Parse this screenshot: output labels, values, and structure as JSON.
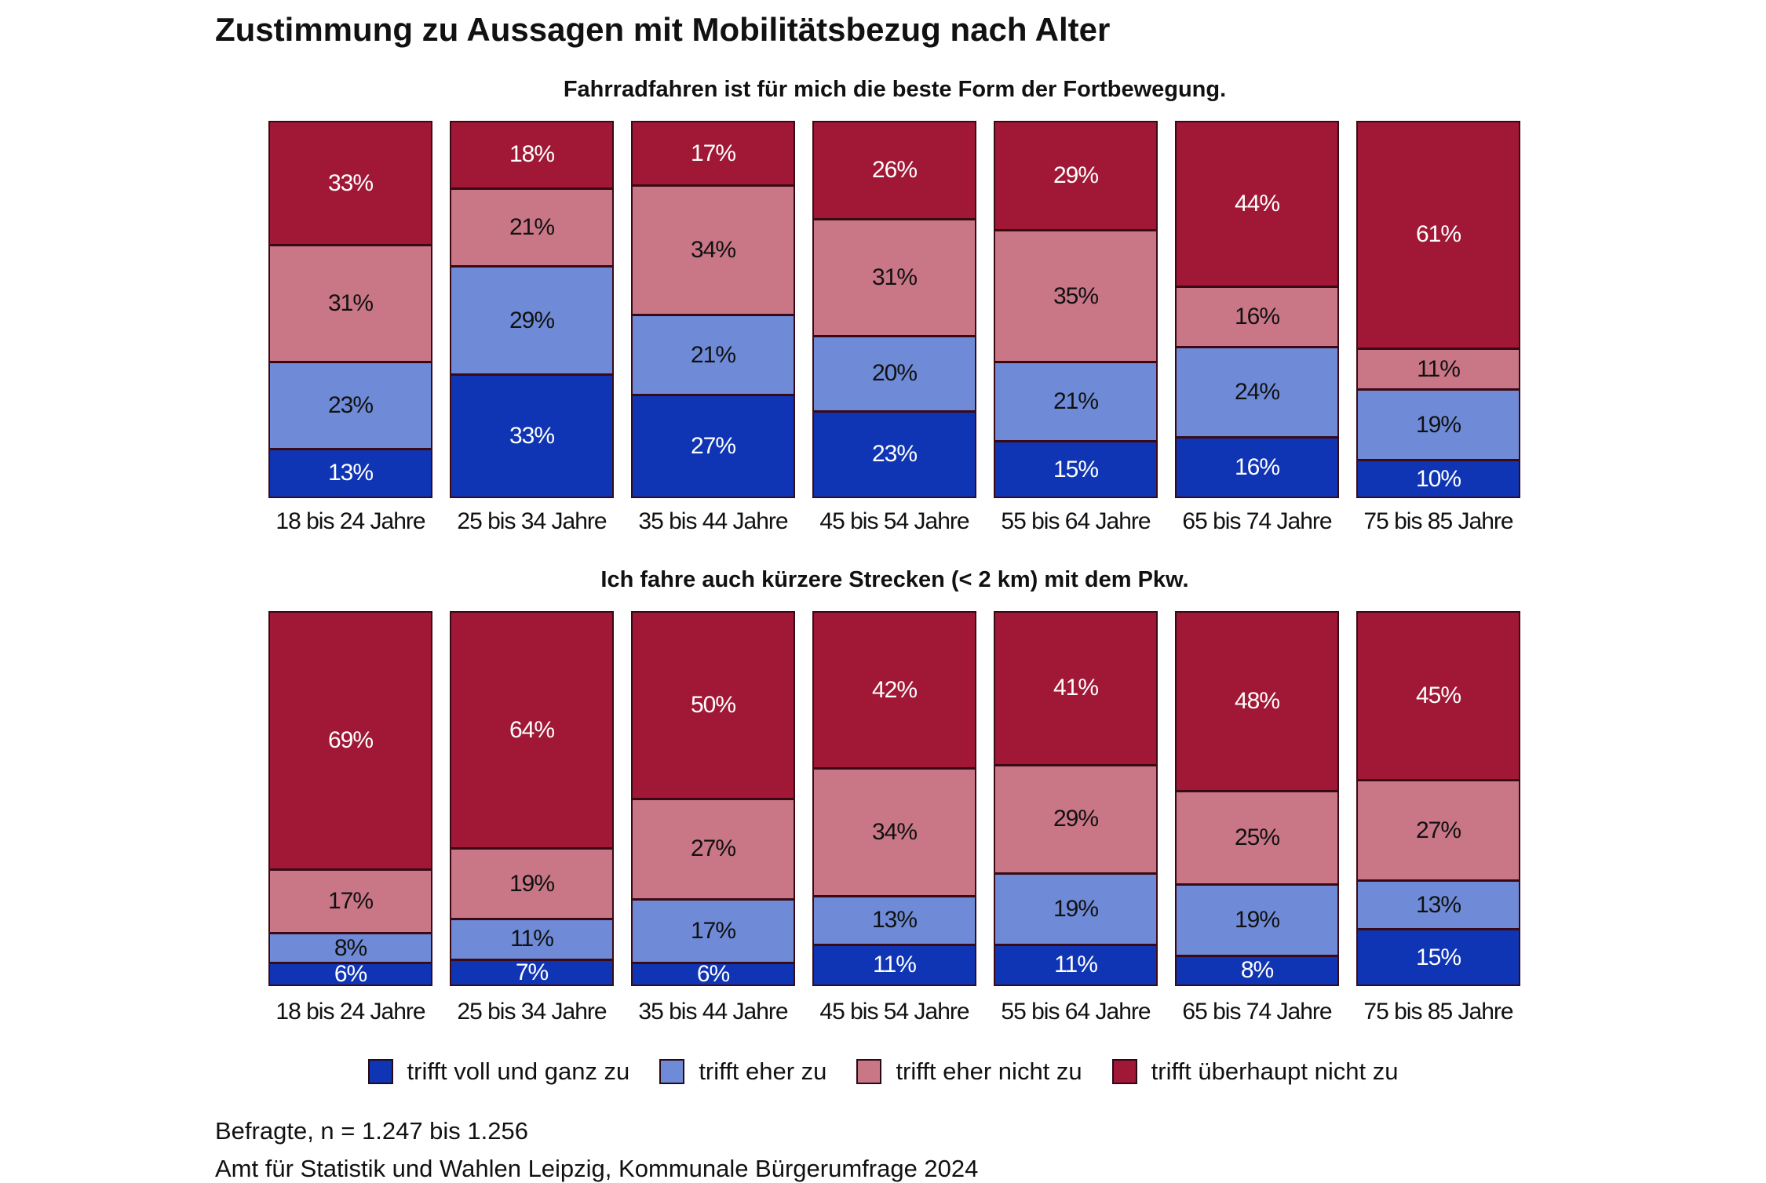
{
  "title": "Zustimmung zu Aussagen mit Mobilitätsbezug nach Alter",
  "legend": [
    {
      "label": "trifft voll und ganz zu",
      "color": "#1035b4"
    },
    {
      "label": "trifft eher zu",
      "color": "#6f8bd7"
    },
    {
      "label": "trifft eher nicht zu",
      "color": "#c97686"
    },
    {
      "label": "trifft überhaupt nicht zu",
      "color": "#a01836"
    }
  ],
  "notes": {
    "sample": "Befragte, n = 1.247 bis 1.256",
    "source": "Amt für Statistik und Wahlen Leipzig, Kommunale Bürgerumfrage 2024"
  },
  "chart_data": [
    {
      "type": "bar",
      "stacked": true,
      "normalized": true,
      "title": "Fahrradfahren ist für mich die beste Form der Fortbewegung.",
      "categories": [
        "18 bis 24 Jahre",
        "25 bis 34 Jahre",
        "35 bis 44 Jahre",
        "45 bis 54 Jahre",
        "55 bis 64 Jahre",
        "65 bis 74 Jahre",
        "75 bis 85 Jahre"
      ],
      "series": [
        {
          "name": "trifft voll und ganz zu",
          "values": [
            13,
            33,
            27,
            23,
            15,
            16,
            10
          ]
        },
        {
          "name": "trifft eher zu",
          "values": [
            23,
            29,
            21,
            20,
            21,
            24,
            19
          ]
        },
        {
          "name": "trifft eher nicht zu",
          "values": [
            31,
            21,
            34,
            31,
            35,
            16,
            11
          ]
        },
        {
          "name": "trifft überhaupt nicht zu",
          "values": [
            33,
            18,
            17,
            26,
            29,
            44,
            61
          ]
        }
      ],
      "ylim": [
        0,
        100
      ],
      "legend_position": "bottom",
      "grid": false
    },
    {
      "type": "bar",
      "stacked": true,
      "normalized": true,
      "title": "Ich fahre auch kürzere Strecken  (< 2 km) mit dem Pkw.",
      "categories": [
        "18 bis 24 Jahre",
        "25 bis 34 Jahre",
        "35 bis 44 Jahre",
        "45 bis 54 Jahre",
        "55 bis 64 Jahre",
        "65 bis 74 Jahre",
        "75 bis 85 Jahre"
      ],
      "series": [
        {
          "name": "trifft voll und ganz zu",
          "values": [
            6,
            7,
            6,
            11,
            11,
            8,
            15
          ]
        },
        {
          "name": "trifft eher zu",
          "values": [
            8,
            11,
            17,
            13,
            19,
            19,
            13
          ]
        },
        {
          "name": "trifft eher nicht zu",
          "values": [
            17,
            19,
            27,
            34,
            29,
            25,
            27
          ]
        },
        {
          "name": "trifft überhaupt nicht zu",
          "values": [
            69,
            64,
            50,
            42,
            41,
            48,
            45
          ]
        }
      ],
      "ylim": [
        0,
        100
      ],
      "legend_position": "bottom",
      "grid": false
    }
  ]
}
